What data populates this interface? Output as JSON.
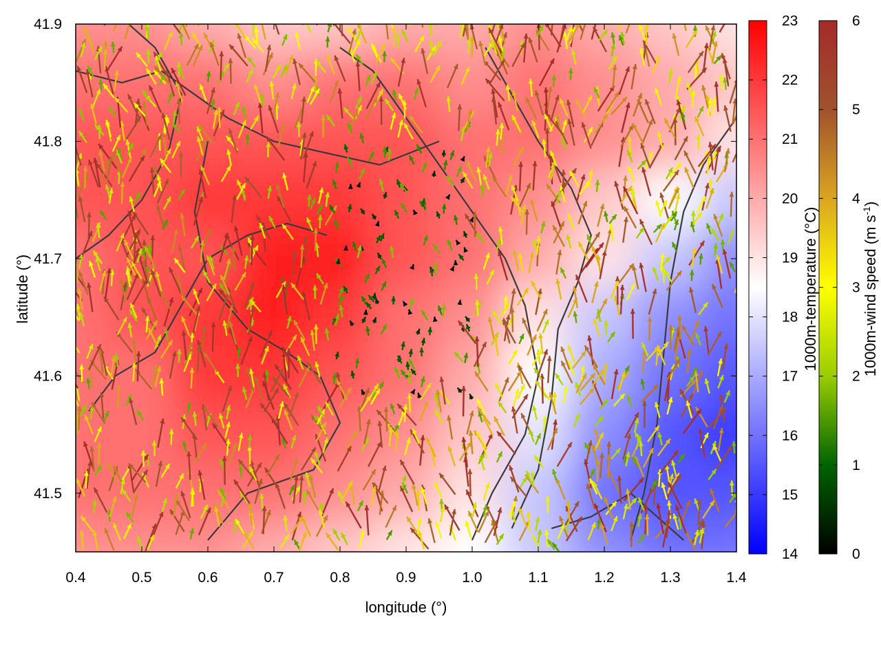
{
  "chart_data": {
    "type": "heatmap",
    "xlabel": "longitude (°)",
    "ylabel": "latitude (°)",
    "xlim": [
      0.4,
      1.4
    ],
    "ylim": [
      41.45,
      41.9
    ],
    "x_ticks": [
      "0.4",
      "0.5",
      "0.6",
      "0.7",
      "0.8",
      "0.9",
      "1.0",
      "1.1",
      "1.2",
      "1.3",
      "1.4"
    ],
    "y_ticks": [
      "41.5",
      "41.6",
      "41.7",
      "41.8",
      "41.9"
    ],
    "grid": false,
    "legend": "none",
    "temperature_colorbar": {
      "label": "1000m-temperature (°C)",
      "range": [
        14,
        23
      ],
      "ticks": [
        "14",
        "15",
        "16",
        "17",
        "18",
        "19",
        "20",
        "21",
        "22",
        "23"
      ],
      "colors": [
        "#0000ff",
        "#ffffff",
        "#ff0000"
      ]
    },
    "wind_colorbar": {
      "label_main": "1000m-wind speed (m s",
      "label_sup": "-1",
      "label_end": ")",
      "range": [
        0,
        6
      ],
      "ticks": [
        "0",
        "1",
        "2",
        "3",
        "4",
        "5",
        "6"
      ],
      "colors": [
        "#000000",
        "#006400",
        "#9acd00",
        "#ffff00",
        "#daa520",
        "#a0522d",
        "#a52a2a"
      ]
    },
    "temperature_field": {
      "description_free": true,
      "x": [
        0.4,
        0.5,
        0.6,
        0.7,
        0.8,
        0.9,
        1.0,
        1.1,
        1.2,
        1.3,
        1.4
      ],
      "y": [
        41.9,
        41.85,
        41.8,
        41.75,
        41.7,
        41.65,
        41.6,
        41.55,
        41.5,
        41.45
      ],
      "values": [
        [
          20.5,
          20.5,
          20.0,
          19.5,
          19.5,
          20.0,
          20.0,
          20.5,
          20.0,
          19.5,
          19.0
        ],
        [
          21.0,
          21.0,
          21.0,
          20.5,
          21.0,
          21.0,
          20.5,
          21.0,
          20.5,
          20.0,
          19.5
        ],
        [
          21.5,
          21.5,
          21.5,
          21.5,
          21.5,
          21.5,
          21.0,
          21.0,
          20.5,
          20.0,
          19.0
        ],
        [
          21.5,
          21.5,
          22.0,
          22.0,
          22.0,
          21.5,
          21.0,
          20.5,
          19.5,
          18.5,
          17.5
        ],
        [
          21.0,
          21.5,
          21.5,
          22.5,
          22.5,
          21.5,
          21.0,
          20.0,
          19.0,
          17.5,
          16.5
        ],
        [
          21.0,
          21.5,
          22.0,
          22.5,
          22.0,
          21.0,
          20.5,
          19.0,
          17.5,
          16.5,
          16.0
        ],
        [
          21.0,
          21.0,
          22.0,
          22.0,
          21.5,
          21.0,
          20.0,
          18.5,
          17.0,
          16.0,
          15.5
        ],
        [
          21.0,
          21.0,
          21.5,
          21.5,
          21.0,
          20.5,
          19.5,
          18.0,
          16.5,
          15.5,
          15.0
        ],
        [
          21.0,
          21.0,
          21.0,
          21.0,
          20.5,
          20.0,
          19.0,
          17.5,
          16.0,
          15.5,
          15.5
        ],
        [
          20.5,
          20.5,
          20.5,
          20.0,
          19.5,
          19.0,
          18.5,
          17.5,
          16.5,
          16.0,
          16.0
        ]
      ]
    }
  }
}
